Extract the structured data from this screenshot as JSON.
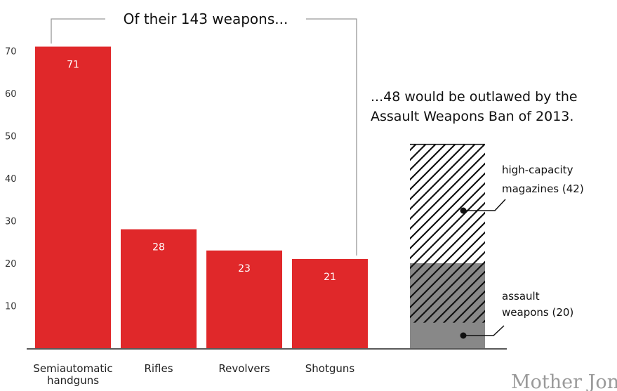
{
  "chart_data": {
    "type": "bar",
    "ylim": [
      0,
      75
    ],
    "yticks": [
      10,
      20,
      30,
      40,
      50,
      60,
      70
    ],
    "categories": [
      "Semiautomatic handguns",
      "Rifles",
      "Revolvers",
      "Shotguns"
    ],
    "category_lines": [
      [
        "Semiautomatic",
        "handguns"
      ],
      [
        "Rifles"
      ],
      [
        "Revolvers"
      ],
      [
        "Shotguns"
      ]
    ],
    "values": [
      71,
      28,
      23,
      21
    ],
    "value_labels": [
      "71",
      "28",
      "23",
      "21"
    ],
    "bar_color": "#e0282a",
    "bracket_label": "Of their 143 weapons...",
    "subset": {
      "title_lines": [
        "...48 would be outlawed by the",
        "Assault Weapons Ban of 2013."
      ],
      "total": 48,
      "segments": [
        {
          "label_lines": [
            "assault",
            "weapons (20)"
          ],
          "value": 20,
          "solid_color": "#888888"
        },
        {
          "label_lines": [
            "high-capacity",
            "magazines (42)"
          ],
          "value": 42,
          "hatched": true
        }
      ],
      "overlap": 14
    }
  },
  "brand": "Mother Jones"
}
